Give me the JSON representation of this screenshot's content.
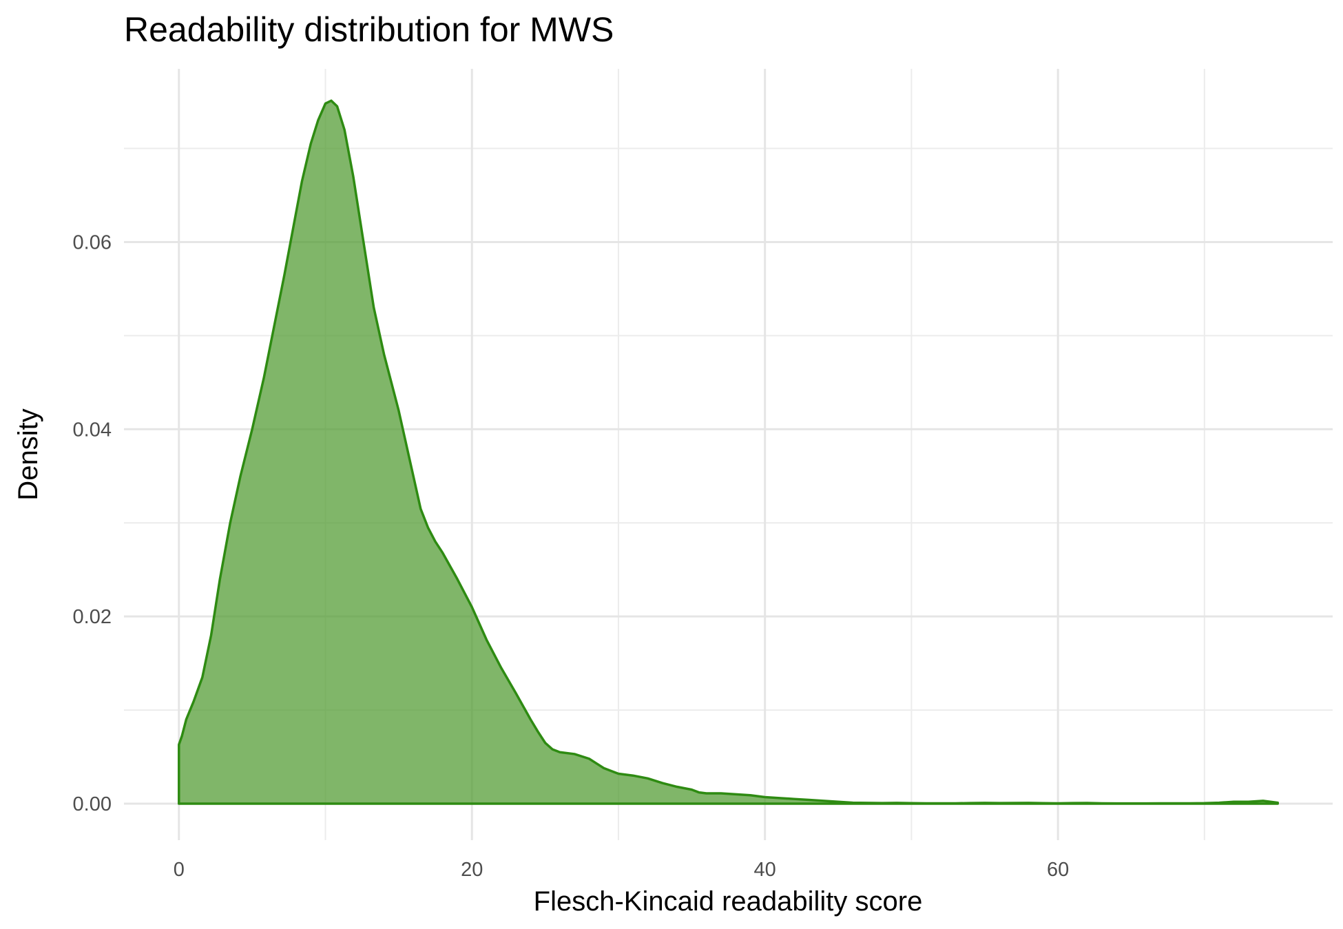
{
  "chart_data": {
    "type": "area",
    "title": "Readability distribution for MWS",
    "xlabel": "Flesch-Kincaid readability score",
    "ylabel": "Density",
    "xlim": [
      -3.75,
      78.75
    ],
    "ylim": [
      -0.0039,
      0.0785
    ],
    "x_ticks": [
      0,
      20,
      40,
      60
    ],
    "x_tick_labels": [
      "0",
      "20",
      "40",
      "60"
    ],
    "y_ticks": [
      0.0,
      0.02,
      0.04,
      0.06
    ],
    "y_tick_labels": [
      "0.00",
      "0.02",
      "0.04",
      "0.06"
    ],
    "x_minor_ticks": [
      10,
      30,
      50,
      70
    ],
    "y_minor_ticks": [
      0.01,
      0.03,
      0.05,
      0.07
    ],
    "grid": true,
    "legend": "none",
    "fill_color": "#4f9a2f",
    "fill_opacity": 0.72,
    "line_color": "#2e8b12",
    "x": [
      0,
      0.2,
      0.5,
      1,
      1.6,
      2.2,
      2.8,
      3.5,
      4.2,
      5,
      5.8,
      6.5,
      7.2,
      7.8,
      8.4,
      9,
      9.5,
      10,
      10.4,
      10.8,
      11.3,
      11.9,
      12.6,
      13.3,
      14,
      15,
      16,
      16.5,
      17,
      17.5,
      18,
      19,
      20,
      21,
      22,
      23,
      24,
      24.5,
      25,
      25.5,
      26,
      27,
      28,
      28.5,
      29,
      30,
      31,
      32,
      33,
      34,
      35,
      35.5,
      36,
      37,
      38,
      39,
      40,
      41,
      42,
      43,
      44,
      45,
      46,
      47,
      48,
      49,
      50,
      51,
      52,
      53,
      54,
      55,
      56,
      57,
      58,
      59,
      60,
      61,
      62,
      63,
      64,
      65,
      66,
      67,
      68,
      69,
      70,
      71,
      72,
      73,
      74,
      75
    ],
    "y": [
      0.0063,
      0.0072,
      0.009,
      0.0109,
      0.0135,
      0.018,
      0.024,
      0.03,
      0.035,
      0.04,
      0.0455,
      0.051,
      0.0565,
      0.0615,
      0.0665,
      0.0705,
      0.073,
      0.0748,
      0.0751,
      0.0745,
      0.072,
      0.067,
      0.06,
      0.053,
      0.048,
      0.042,
      0.035,
      0.0315,
      0.0295,
      0.028,
      0.0268,
      0.024,
      0.021,
      0.0175,
      0.0145,
      0.0118,
      0.009,
      0.0077,
      0.0065,
      0.0058,
      0.0055,
      0.0053,
      0.0048,
      0.0043,
      0.0038,
      0.0032,
      0.003,
      0.0027,
      0.0022,
      0.0018,
      0.0015,
      0.0012,
      0.0011,
      0.0011,
      0.001,
      0.0009,
      0.0007,
      0.0006,
      0.0005,
      0.0004,
      0.0003,
      0.0002,
      0.0001,
      8e-05,
      6e-05,
      8e-05,
      5e-05,
      4e-05,
      4e-05,
      4e-05,
      6e-05,
      8e-05,
      6e-05,
      7e-05,
      8e-05,
      5e-05,
      4e-05,
      6e-05,
      7e-05,
      4e-05,
      3e-05,
      3e-05,
      3e-05,
      4e-05,
      4e-05,
      4e-05,
      5e-05,
      0.0001,
      0.0002,
      0.0002,
      0.0003,
      0.0001
    ]
  }
}
